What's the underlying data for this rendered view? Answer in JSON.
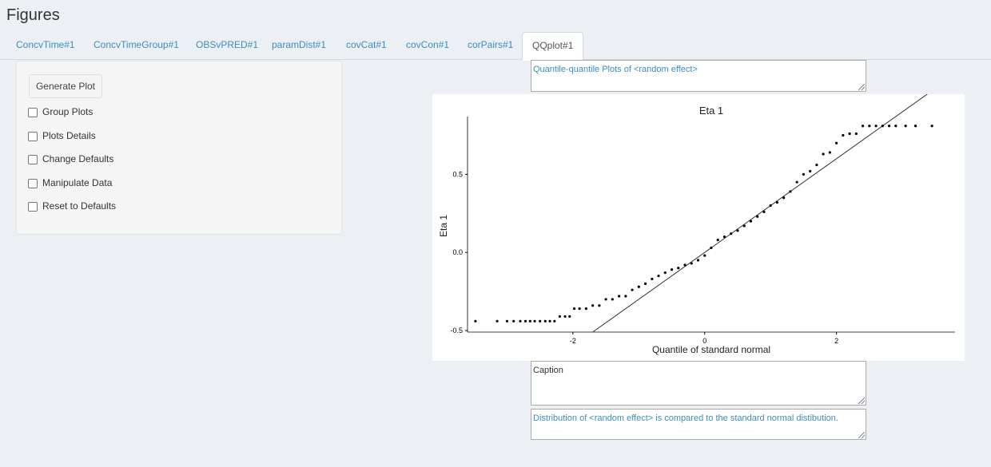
{
  "page": {
    "title": "Figures"
  },
  "tabs": [
    {
      "label": "ConcvTime#1",
      "active": false
    },
    {
      "label": "ConcvTimeGroup#1",
      "active": false
    },
    {
      "label": "OBSvPRED#1",
      "active": false
    },
    {
      "label": "paramDist#1",
      "active": false
    },
    {
      "label": "covCat#1",
      "active": false
    },
    {
      "label": "covCon#1",
      "active": false
    },
    {
      "label": "corPairs#1",
      "active": false
    },
    {
      "label": "QQplot#1",
      "active": true
    }
  ],
  "sidebar": {
    "generate_label": "Generate Plot",
    "options": [
      {
        "label": "Group Plots",
        "checked": false
      },
      {
        "label": "Plots Details",
        "checked": false
      },
      {
        "label": "Change Defaults",
        "checked": false
      },
      {
        "label": "Manipulate Data",
        "checked": false
      },
      {
        "label": "Reset to Defaults",
        "checked": false
      }
    ]
  },
  "plot_title_field": {
    "value": "Quantile-quantile Plots of <random effect>"
  },
  "caption_field": {
    "value": "Caption"
  },
  "description_field": {
    "value": "Distribution of <random effect> is compared to the standard normal distibution."
  },
  "colors": {
    "accent": "#3c8dbc",
    "background": "#ecf0f5",
    "panel": "#f5f5f5"
  },
  "chart_data": {
    "type": "scatter",
    "title": "Eta 1",
    "xlabel": "Quantile of standard normal",
    "ylabel": "Eta 1",
    "xlim": [
      -3.6,
      3.8
    ],
    "ylim": [
      -0.51,
      0.87
    ],
    "xticks": [
      -2,
      0,
      2
    ],
    "yticks": [
      -0.5,
      0.0,
      0.5
    ],
    "xtick_labels": [
      "-2",
      "0",
      "2"
    ],
    "ytick_labels": [
      "-0.5",
      "0.0",
      "0.5"
    ],
    "grid": false,
    "reference_line": {
      "intercept": 0.0,
      "slope": 0.3
    },
    "series": [
      {
        "x": [
          -3.48,
          -3.15,
          -3.0,
          -2.9,
          -2.8,
          -2.72,
          -2.65,
          -2.58,
          -2.5,
          -2.42,
          -2.35,
          -2.28,
          -2.2,
          -2.12,
          -2.05,
          -1.98,
          -1.9,
          -1.8,
          -1.7,
          -1.6,
          -1.5,
          -1.4,
          -1.3,
          -1.2,
          -1.1,
          -1.0,
          -0.9,
          -0.8,
          -0.7,
          -0.6,
          -0.5,
          -0.4,
          -0.3,
          -0.2,
          -0.1,
          0.0,
          0.1,
          0.2,
          0.3,
          0.4,
          0.5,
          0.6,
          0.7,
          0.8,
          0.9,
          1.0,
          1.1,
          1.2,
          1.3,
          1.4,
          1.5,
          1.6,
          1.7,
          1.8,
          1.9,
          2.0,
          2.1,
          2.2,
          2.3,
          2.4,
          2.5,
          2.6,
          2.7,
          2.8,
          2.9,
          3.05,
          3.2,
          3.45
        ],
        "y": [
          -0.44,
          -0.44,
          -0.44,
          -0.44,
          -0.44,
          -0.44,
          -0.44,
          -0.44,
          -0.44,
          -0.44,
          -0.44,
          -0.44,
          -0.41,
          -0.41,
          -0.41,
          -0.36,
          -0.36,
          -0.36,
          -0.34,
          -0.34,
          -0.3,
          -0.3,
          -0.28,
          -0.28,
          -0.24,
          -0.22,
          -0.2,
          -0.17,
          -0.15,
          -0.13,
          -0.11,
          -0.1,
          -0.08,
          -0.07,
          -0.05,
          -0.02,
          0.03,
          0.08,
          0.1,
          0.12,
          0.14,
          0.17,
          0.2,
          0.23,
          0.26,
          0.3,
          0.32,
          0.35,
          0.39,
          0.45,
          0.5,
          0.52,
          0.56,
          0.63,
          0.64,
          0.7,
          0.75,
          0.76,
          0.76,
          0.81,
          0.81,
          0.81,
          0.81,
          0.81,
          0.81,
          0.81,
          0.81,
          0.81
        ]
      }
    ]
  }
}
